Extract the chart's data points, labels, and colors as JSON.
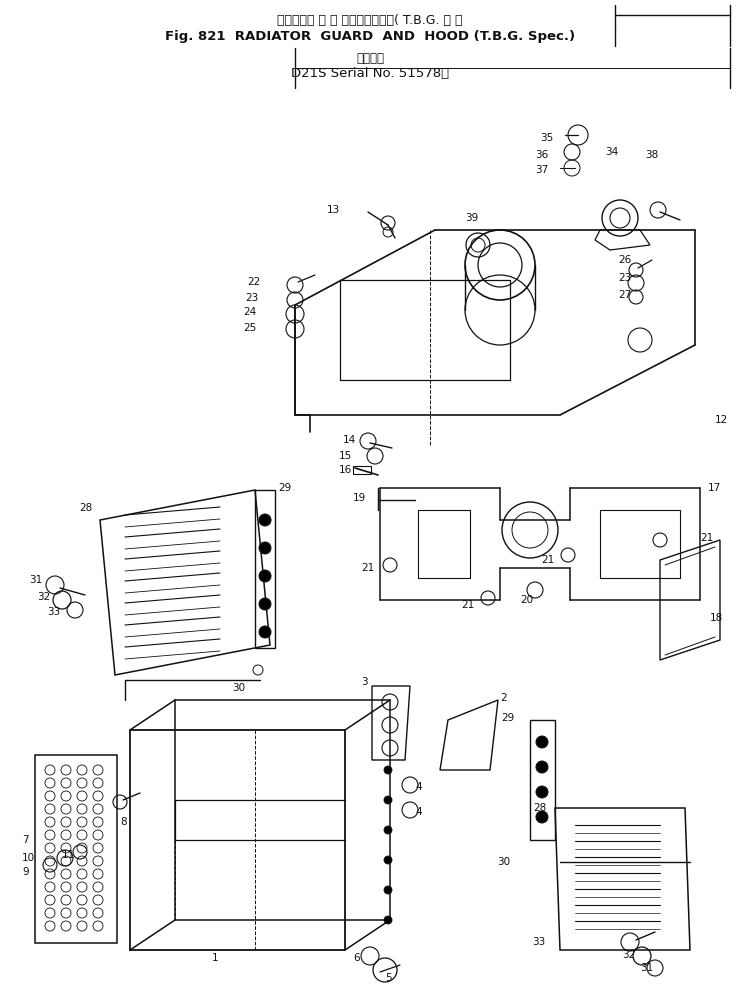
{
  "title_line1": "ラジェータ ガ ー ドおよびフード( T.B.G. 仕 様",
  "title_line2": "Fig. 821  RADIATOR  GUARD  AND  HOOD (T.B.G. Spec.)",
  "title_line3": "適用号機",
  "title_line4": "D21S Serial No. 51578～",
  "bg_color": "#ffffff",
  "lc": "#111111",
  "figw": 7.4,
  "figh": 10.0,
  "dpi": 100
}
